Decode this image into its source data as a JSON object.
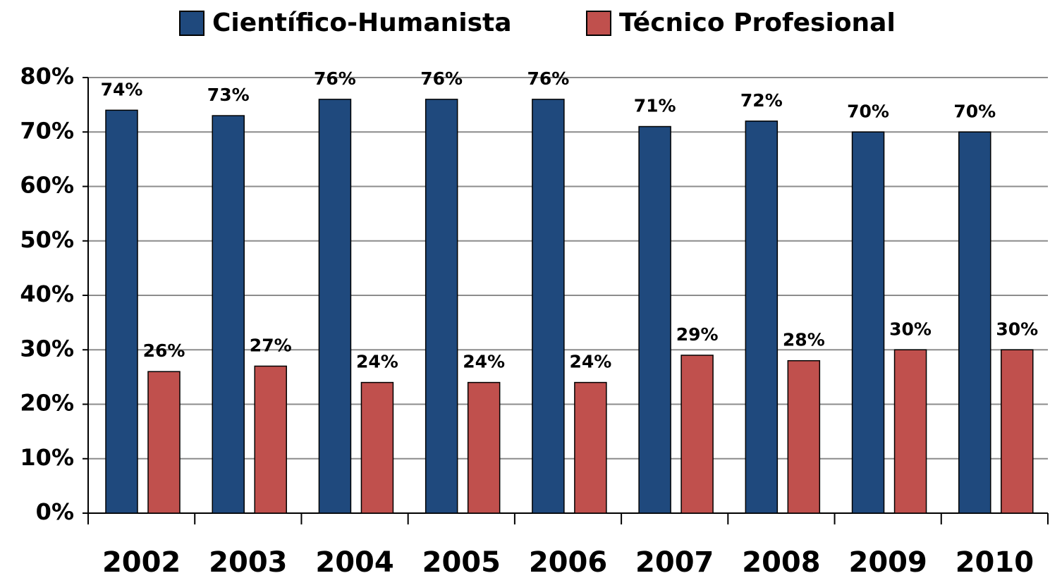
{
  "chart_data": {
    "type": "bar",
    "categories": [
      "2002",
      "2003",
      "2004",
      "2005",
      "2006",
      "2007",
      "2008",
      "2009",
      "2010"
    ],
    "series": [
      {
        "name": "Científico-Humanista",
        "color": "#1f497d",
        "values": [
          74,
          73,
          76,
          76,
          76,
          71,
          72,
          70,
          70
        ],
        "value_labels": [
          "74%",
          "73%",
          "76%",
          "76%",
          "76%",
          "71%",
          "72%",
          "70%",
          "70%"
        ]
      },
      {
        "name": "Técnico Profesional",
        "color": "#c0504d",
        "values": [
          26,
          27,
          24,
          24,
          24,
          29,
          28,
          30,
          30
        ],
        "value_labels": [
          "26%",
          "27%",
          "24%",
          "24%",
          "24%",
          "29%",
          "28%",
          "30%",
          "30%"
        ]
      }
    ],
    "ylim": [
      0,
      80
    ],
    "yticks": [
      {
        "value": 0,
        "label": "0%"
      },
      {
        "value": 10,
        "label": "10%"
      },
      {
        "value": 20,
        "label": "20%"
      },
      {
        "value": 30,
        "label": "30%"
      },
      {
        "value": 40,
        "label": "40%"
      },
      {
        "value": 50,
        "label": "50%"
      },
      {
        "value": 60,
        "label": "60%"
      },
      {
        "value": 70,
        "label": "70%"
      },
      {
        "value": 80,
        "label": "80%"
      }
    ],
    "grid": true,
    "legend": "top"
  }
}
